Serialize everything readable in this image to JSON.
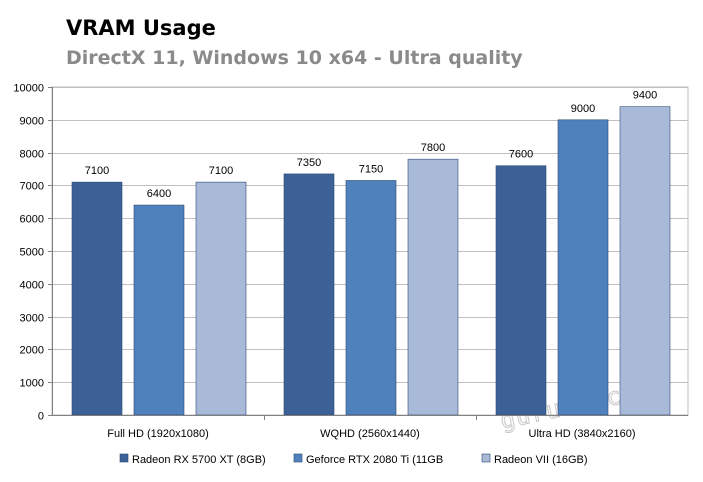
{
  "chart_data": {
    "type": "bar",
    "title": "VRAM Usage",
    "subtitle": "DirectX 11, Windows 10 x64 - Ultra quality",
    "xlabel": "",
    "ylabel": "",
    "categories": [
      "Full HD (1920x1080)",
      "WQHD (2560x1440)",
      "Ultra HD (3840x2160)"
    ],
    "series": [
      {
        "name": "Radeon RX 5700 XT (8GB)",
        "color": "#3b6196",
        "values": [
          7100,
          7350,
          7600
        ]
      },
      {
        "name": "Geforce RTX 2080 Ti  (11GB",
        "color": "#4f81bd",
        "values": [
          6400,
          7150,
          9000
        ]
      },
      {
        "name": "Radeon VII  (16GB)",
        "color": "#a9bad8",
        "values": [
          7100,
          7800,
          9400
        ]
      }
    ],
    "ylim": [
      0,
      10000
    ],
    "yticks": [
      0,
      1000,
      2000,
      3000,
      4000,
      5000,
      6000,
      7000,
      8000,
      9000,
      10000
    ],
    "grid": true,
    "legend": "bottom",
    "data_labels": true
  },
  "watermark": {
    "text": "guru3d.com"
  }
}
